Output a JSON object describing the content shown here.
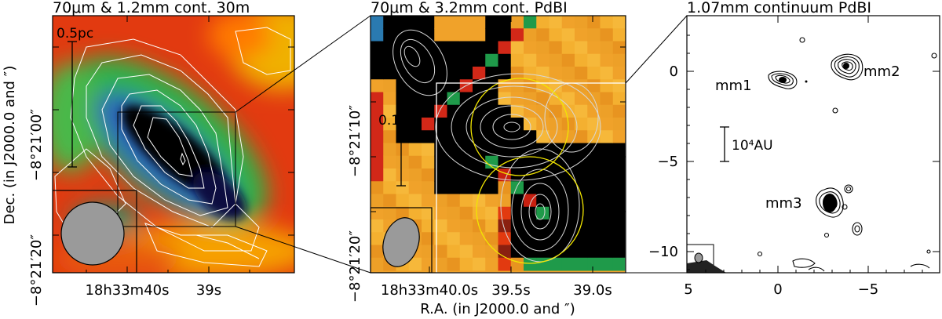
{
  "panels": [
    {
      "title": "70μm & 1.2mm cont. 30m",
      "scalebar_label": "0.5pc",
      "yticks": [
        "−8°21′00″",
        "−8°21′20″"
      ],
      "xticks": [
        "18h33m40s",
        "39s"
      ]
    },
    {
      "title": "70μm & 3.2mm cont. PdBI",
      "scalebar_label": "0.1pc",
      "yticks": [
        "−8°21′10″",
        "−8°21′20″"
      ],
      "xticks": [
        "18h33m40.0s",
        "39.5s",
        "39.0s"
      ]
    },
    {
      "title": "1.07mm continuum PdBI",
      "scalebar_label": "10⁴AU",
      "source_labels": [
        "mm1",
        "mm2",
        "mm3"
      ],
      "yticks": [
        "0",
        "−5",
        "−10"
      ],
      "xticks": [
        "5",
        "0",
        "−5"
      ]
    }
  ],
  "axes": {
    "ylabel": "Dec. (in J2000.0 and ″)",
    "xlabel": "R.A. (in J2000.0 and ″)"
  },
  "colors": {
    "contour_white": "#ffffff",
    "primary_beam_circles": "#f2e600",
    "beam_fill": "#9a9a9a",
    "core": "#000000"
  }
}
